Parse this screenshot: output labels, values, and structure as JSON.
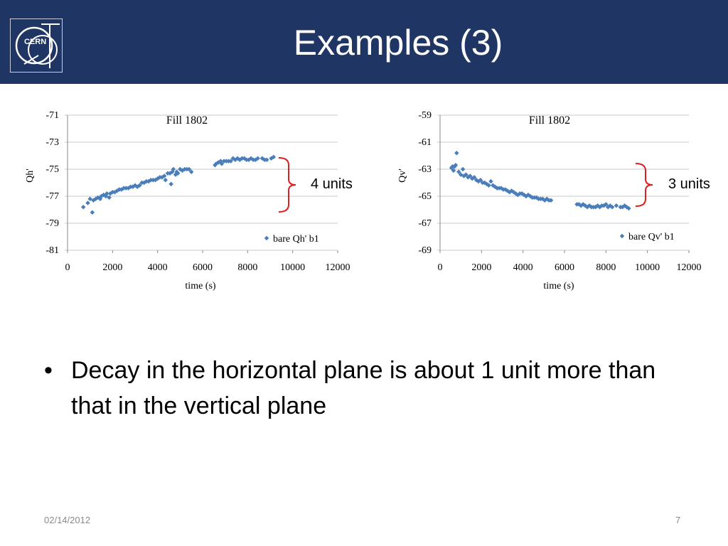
{
  "slide": {
    "title": "Examples (3)",
    "logo_text": "CERN",
    "bullet": "Decay in the horizontal plane is about 1 unit more than that in the vertical plane",
    "footer_date": "02/14/2012",
    "page_number": "7",
    "colors": {
      "header": "#1f3564",
      "marker": "#4a7ebb",
      "brace": "#e02020",
      "grid": "#c8c8c8"
    }
  },
  "annotations": {
    "left": "4 units",
    "right": "3 units"
  },
  "chart_data": [
    {
      "type": "scatter",
      "title": "Fill 1802",
      "xlabel": "time (s)",
      "ylabel": "Qh'",
      "xlim": [
        0,
        12000
      ],
      "ylim": [
        -81,
        -71
      ],
      "xticks": [
        "0",
        "2000",
        "4000",
        "6000",
        "8000",
        "10000",
        "12000"
      ],
      "yticks": [
        "-71",
        "-73",
        "-75",
        "-77",
        "-79",
        "-81"
      ],
      "grid": true,
      "legend": "bottom-right",
      "series": [
        {
          "name": "bare Qh' b1",
          "points": [
            [
              700,
              -77.8
            ],
            [
              900,
              -77.5
            ],
            [
              1000,
              -77.2
            ],
            [
              1100,
              -78.2
            ],
            [
              1150,
              -77.3
            ],
            [
              1250,
              -77.2
            ],
            [
              1350,
              -77.1
            ],
            [
              1450,
              -77.2
            ],
            [
              1500,
              -77.0
            ],
            [
              1600,
              -76.9
            ],
            [
              1700,
              -77.0
            ],
            [
              1750,
              -76.8
            ],
            [
              1850,
              -77.1
            ],
            [
              1900,
              -76.8
            ],
            [
              2000,
              -76.7
            ],
            [
              2100,
              -76.7
            ],
            [
              2200,
              -76.6
            ],
            [
              2300,
              -76.5
            ],
            [
              2400,
              -76.5
            ],
            [
              2500,
              -76.4
            ],
            [
              2600,
              -76.4
            ],
            [
              2700,
              -76.4
            ],
            [
              2800,
              -76.3
            ],
            [
              2900,
              -76.3
            ],
            [
              3000,
              -76.2
            ],
            [
              3100,
              -76.3
            ],
            [
              3200,
              -76.2
            ],
            [
              3300,
              -76.0
            ],
            [
              3400,
              -76.0
            ],
            [
              3500,
              -75.9
            ],
            [
              3600,
              -75.9
            ],
            [
              3700,
              -75.8
            ],
            [
              3800,
              -75.8
            ],
            [
              3900,
              -75.8
            ],
            [
              4000,
              -75.7
            ],
            [
              4100,
              -75.6
            ],
            [
              4200,
              -75.6
            ],
            [
              4300,
              -75.5
            ],
            [
              4350,
              -75.8
            ],
            [
              4450,
              -75.3
            ],
            [
              4550,
              -75.3
            ],
            [
              4600,
              -76.1
            ],
            [
              4650,
              -75.2
            ],
            [
              4700,
              -75.0
            ],
            [
              4800,
              -75.4
            ],
            [
              4850,
              -75.2
            ],
            [
              4900,
              -75.3
            ],
            [
              5000,
              -75.0
            ],
            [
              5100,
              -75.1
            ],
            [
              5200,
              -75.0
            ],
            [
              5300,
              -75.0
            ],
            [
              5400,
              -75.0
            ],
            [
              5500,
              -75.2
            ],
            [
              6550,
              -74.7
            ],
            [
              6600,
              -74.6
            ],
            [
              6700,
              -74.5
            ],
            [
              6800,
              -74.4
            ],
            [
              6850,
              -74.6
            ],
            [
              6950,
              -74.4
            ],
            [
              7050,
              -74.4
            ],
            [
              7150,
              -74.4
            ],
            [
              7250,
              -74.4
            ],
            [
              7350,
              -74.2
            ],
            [
              7450,
              -74.3
            ],
            [
              7550,
              -74.2
            ],
            [
              7650,
              -74.3
            ],
            [
              7750,
              -74.2
            ],
            [
              7850,
              -74.2
            ],
            [
              7950,
              -74.3
            ],
            [
              8050,
              -74.3
            ],
            [
              8150,
              -74.2
            ],
            [
              8250,
              -74.3
            ],
            [
              8350,
              -74.3
            ],
            [
              8450,
              -74.2
            ],
            [
              8650,
              -74.2
            ],
            [
              8750,
              -74.3
            ],
            [
              8850,
              -74.3
            ],
            [
              9050,
              -74.2
            ],
            [
              9150,
              -74.1
            ]
          ]
        }
      ]
    },
    {
      "type": "scatter",
      "title": "Fill 1802",
      "xlabel": "time (s)",
      "ylabel": "Qv'",
      "xlim": [
        0,
        12000
      ],
      "ylim": [
        -69,
        -59
      ],
      "xticks": [
        "0",
        "2000",
        "4000",
        "6000",
        "8000",
        "10000",
        "12000"
      ],
      "yticks": [
        "-59",
        "-61",
        "-63",
        "-65",
        "-67",
        "-69"
      ],
      "grid": true,
      "legend": "bottom-right",
      "series": [
        {
          "name": "bare Qv' b1",
          "points": [
            [
              550,
              -62.9
            ],
            [
              600,
              -62.8
            ],
            [
              650,
              -63.1
            ],
            [
              700,
              -62.8
            ],
            [
              750,
              -62.7
            ],
            [
              800,
              -61.8
            ],
            [
              900,
              -63.2
            ],
            [
              1000,
              -63.4
            ],
            [
              1100,
              -63.0
            ],
            [
              1150,
              -63.5
            ],
            [
              1250,
              -63.4
            ],
            [
              1350,
              -63.6
            ],
            [
              1450,
              -63.5
            ],
            [
              1550,
              -63.7
            ],
            [
              1650,
              -63.6
            ],
            [
              1750,
              -63.8
            ],
            [
              1850,
              -63.9
            ],
            [
              1950,
              -63.8
            ],
            [
              2050,
              -64.0
            ],
            [
              2150,
              -64.0
            ],
            [
              2250,
              -64.1
            ],
            [
              2350,
              -64.2
            ],
            [
              2450,
              -63.9
            ],
            [
              2550,
              -64.2
            ],
            [
              2650,
              -64.3
            ],
            [
              2750,
              -64.4
            ],
            [
              2850,
              -64.4
            ],
            [
              2950,
              -64.4
            ],
            [
              3050,
              -64.5
            ],
            [
              3150,
              -64.5
            ],
            [
              3250,
              -64.6
            ],
            [
              3350,
              -64.7
            ],
            [
              3450,
              -64.6
            ],
            [
              3550,
              -64.7
            ],
            [
              3650,
              -64.8
            ],
            [
              3750,
              -64.9
            ],
            [
              3850,
              -64.8
            ],
            [
              3950,
              -64.8
            ],
            [
              4050,
              -64.9
            ],
            [
              4150,
              -65.0
            ],
            [
              4250,
              -64.9
            ],
            [
              4350,
              -65.0
            ],
            [
              4450,
              -65.1
            ],
            [
              4550,
              -65.1
            ],
            [
              4650,
              -65.1
            ],
            [
              4750,
              -65.2
            ],
            [
              4850,
              -65.2
            ],
            [
              4950,
              -65.2
            ],
            [
              5050,
              -65.3
            ],
            [
              5150,
              -65.2
            ],
            [
              5250,
              -65.3
            ],
            [
              5350,
              -65.3
            ],
            [
              6600,
              -65.6
            ],
            [
              6700,
              -65.6
            ],
            [
              6800,
              -65.7
            ],
            [
              6900,
              -65.6
            ],
            [
              7000,
              -65.7
            ],
            [
              7100,
              -65.8
            ],
            [
              7200,
              -65.7
            ],
            [
              7300,
              -65.8
            ],
            [
              7400,
              -65.8
            ],
            [
              7500,
              -65.8
            ],
            [
              7600,
              -65.7
            ],
            [
              7700,
              -65.8
            ],
            [
              7800,
              -65.7
            ],
            [
              7900,
              -65.7
            ],
            [
              8000,
              -65.6
            ],
            [
              8100,
              -65.8
            ],
            [
              8200,
              -65.7
            ],
            [
              8300,
              -65.8
            ],
            [
              8500,
              -65.7
            ],
            [
              8700,
              -65.8
            ],
            [
              8800,
              -65.8
            ],
            [
              8900,
              -65.7
            ],
            [
              9000,
              -65.8
            ],
            [
              9100,
              -65.9
            ]
          ]
        }
      ]
    }
  ]
}
